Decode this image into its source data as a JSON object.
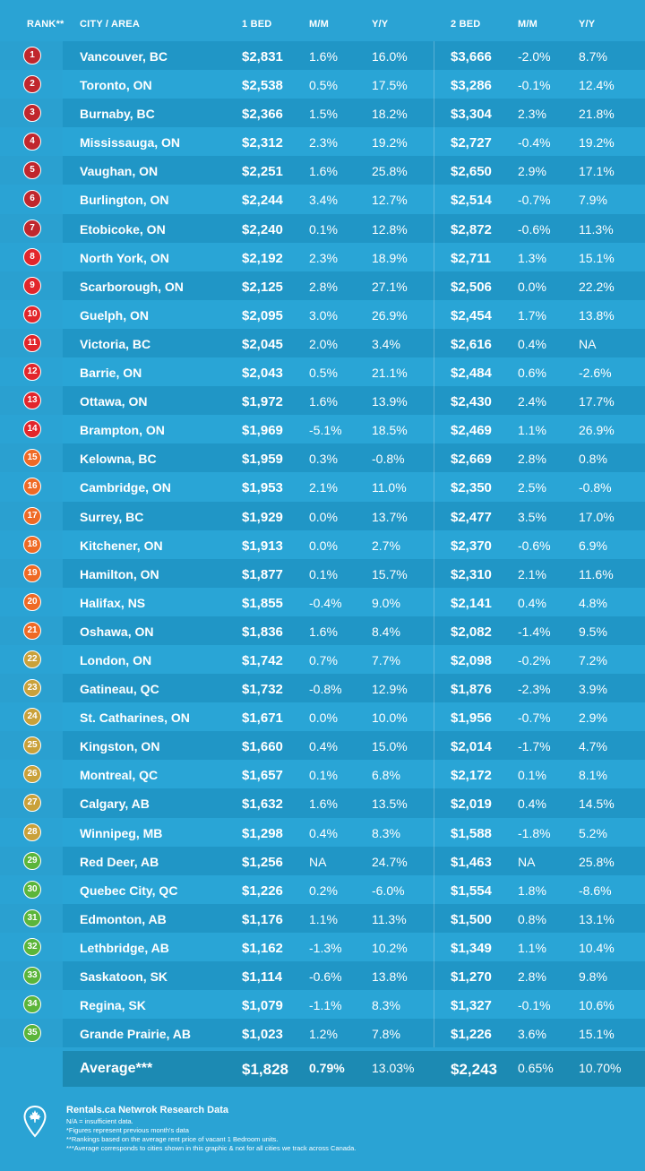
{
  "header": {
    "rank": "RANK**",
    "city": "CITY / AREA",
    "bed1": "1 BED",
    "mm1": "M/M",
    "yy1": "Y/Y",
    "bed2": "2 BED",
    "mm2": "M/M",
    "yy2": "Y/Y"
  },
  "chart_data": {
    "type": "table",
    "columns": [
      "RANK**",
      "CITY / AREA",
      "1 BED",
      "M/M",
      "Y/Y",
      "2 BED",
      "M/M",
      "Y/Y"
    ],
    "rows": [
      {
        "rank": "1",
        "city": "Vancouver, BC",
        "bed1": "$2,831",
        "mm1": "1.6%",
        "yy1": "16.0%",
        "bed2": "$3,666",
        "mm2": "-2.0%",
        "yy2": "8.7%",
        "color": "#c0272d"
      },
      {
        "rank": "2",
        "city": "Toronto, ON",
        "bed1": "$2,538",
        "mm1": "0.5%",
        "yy1": "17.5%",
        "bed2": "$3,286",
        "mm2": "-0.1%",
        "yy2": "12.4%",
        "color": "#c0272d"
      },
      {
        "rank": "3",
        "city": "Burnaby, BC",
        "bed1": "$2,366",
        "mm1": "1.5%",
        "yy1": "18.2%",
        "bed2": "$3,304",
        "mm2": "2.3%",
        "yy2": "21.8%",
        "color": "#c0272d"
      },
      {
        "rank": "4",
        "city": "Mississauga, ON",
        "bed1": "$2,312",
        "mm1": "2.3%",
        "yy1": "19.2%",
        "bed2": "$2,727",
        "mm2": "-0.4%",
        "yy2": "19.2%",
        "color": "#c0272d"
      },
      {
        "rank": "5",
        "city": "Vaughan, ON",
        "bed1": "$2,251",
        "mm1": "1.6%",
        "yy1": "25.8%",
        "bed2": "$2,650",
        "mm2": "2.9%",
        "yy2": "17.1%",
        "color": "#c0272d"
      },
      {
        "rank": "6",
        "city": "Burlington, ON",
        "bed1": "$2,244",
        "mm1": "3.4%",
        "yy1": "12.7%",
        "bed2": "$2,514",
        "mm2": "-0.7%",
        "yy2": "7.9%",
        "color": "#c0272d"
      },
      {
        "rank": "7",
        "city": "Etobicoke, ON",
        "bed1": "$2,240",
        "mm1": "0.1%",
        "yy1": "12.8%",
        "bed2": "$2,872",
        "mm2": "-0.6%",
        "yy2": "11.3%",
        "color": "#c0272d"
      },
      {
        "rank": "8",
        "city": "North York, ON",
        "bed1": "$2,192",
        "mm1": "2.3%",
        "yy1": "18.9%",
        "bed2": "$2,711",
        "mm2": "1.3%",
        "yy2": "15.1%",
        "color": "#e2262b"
      },
      {
        "rank": "9",
        "city": "Scarborough, ON",
        "bed1": "$2,125",
        "mm1": "2.8%",
        "yy1": "27.1%",
        "bed2": "$2,506",
        "mm2": "0.0%",
        "yy2": "22.2%",
        "color": "#e2262b"
      },
      {
        "rank": "10",
        "city": "Guelph, ON",
        "bed1": "$2,095",
        "mm1": "3.0%",
        "yy1": "26.9%",
        "bed2": "$2,454",
        "mm2": "1.7%",
        "yy2": "13.8%",
        "color": "#e2262b"
      },
      {
        "rank": "11",
        "city": "Victoria, BC",
        "bed1": "$2,045",
        "mm1": "2.0%",
        "yy1": "3.4%",
        "bed2": "$2,616",
        "mm2": "0.4%",
        "yy2": "NA",
        "color": "#e2262b"
      },
      {
        "rank": "12",
        "city": "Barrie, ON",
        "bed1": "$2,043",
        "mm1": "0.5%",
        "yy1": "21.1%",
        "bed2": "$2,484",
        "mm2": "0.6%",
        "yy2": "-2.6%",
        "color": "#e2262b"
      },
      {
        "rank": "13",
        "city": "Ottawa, ON",
        "bed1": "$1,972",
        "mm1": "1.6%",
        "yy1": "13.9%",
        "bed2": "$2,430",
        "mm2": "2.4%",
        "yy2": "17.7%",
        "color": "#e2262b"
      },
      {
        "rank": "14",
        "city": "Brampton, ON",
        "bed1": "$1,969",
        "mm1": "-5.1%",
        "yy1": "18.5%",
        "bed2": "$2,469",
        "mm2": "1.1%",
        "yy2": "26.9%",
        "color": "#e2262b"
      },
      {
        "rank": "15",
        "city": "Kelowna, BC",
        "bed1": "$1,959",
        "mm1": "0.3%",
        "yy1": "-0.8%",
        "bed2": "$2,669",
        "mm2": "2.8%",
        "yy2": "0.8%",
        "color": "#ef6a25"
      },
      {
        "rank": "16",
        "city": "Cambridge, ON",
        "bed1": "$1,953",
        "mm1": "2.1%",
        "yy1": "11.0%",
        "bed2": "$2,350",
        "mm2": "2.5%",
        "yy2": "-0.8%",
        "color": "#ef6a25"
      },
      {
        "rank": "17",
        "city": "Surrey, BC",
        "bed1": "$1,929",
        "mm1": "0.0%",
        "yy1": "13.7%",
        "bed2": "$2,477",
        "mm2": "3.5%",
        "yy2": "17.0%",
        "color": "#ef6a25"
      },
      {
        "rank": "18",
        "city": "Kitchener, ON",
        "bed1": "$1,913",
        "mm1": "0.0%",
        "yy1": "2.7%",
        "bed2": "$2,370",
        "mm2": "-0.6%",
        "yy2": "6.9%",
        "color": "#ef6a25"
      },
      {
        "rank": "19",
        "city": "Hamilton, ON",
        "bed1": "$1,877",
        "mm1": "0.1%",
        "yy1": "15.7%",
        "bed2": "$2,310",
        "mm2": "2.1%",
        "yy2": "11.6%",
        "color": "#ef6a25"
      },
      {
        "rank": "20",
        "city": "Halifax, NS",
        "bed1": "$1,855",
        "mm1": "-0.4%",
        "yy1": "9.0%",
        "bed2": "$2,141",
        "mm2": "0.4%",
        "yy2": "4.8%",
        "color": "#ef6a25"
      },
      {
        "rank": "21",
        "city": "Oshawa, ON",
        "bed1": "$1,836",
        "mm1": "1.6%",
        "yy1": "8.4%",
        "bed2": "$2,082",
        "mm2": "-1.4%",
        "yy2": "9.5%",
        "color": "#ef6a25"
      },
      {
        "rank": "22",
        "city": "London, ON",
        "bed1": "$1,742",
        "mm1": "0.7%",
        "yy1": "7.7%",
        "bed2": "$2,098",
        "mm2": "-0.2%",
        "yy2": "7.2%",
        "color": "#c9a13a"
      },
      {
        "rank": "23",
        "city": "Gatineau, QC",
        "bed1": "$1,732",
        "mm1": "-0.8%",
        "yy1": "12.9%",
        "bed2": "$1,876",
        "mm2": "-2.3%",
        "yy2": "3.9%",
        "color": "#c9a13a"
      },
      {
        "rank": "24",
        "city": "St. Catharines, ON",
        "bed1": "$1,671",
        "mm1": "0.0%",
        "yy1": "10.0%",
        "bed2": "$1,956",
        "mm2": "-0.7%",
        "yy2": "2.9%",
        "color": "#c9a13a"
      },
      {
        "rank": "25",
        "city": "Kingston, ON",
        "bed1": "$1,660",
        "mm1": "0.4%",
        "yy1": "15.0%",
        "bed2": "$2,014",
        "mm2": "-1.7%",
        "yy2": "4.7%",
        "color": "#c9a13a"
      },
      {
        "rank": "26",
        "city": "Montreal, QC",
        "bed1": "$1,657",
        "mm1": "0.1%",
        "yy1": "6.8%",
        "bed2": "$2,172",
        "mm2": "0.1%",
        "yy2": "8.1%",
        "color": "#c9a13a"
      },
      {
        "rank": "27",
        "city": "Calgary, AB",
        "bed1": "$1,632",
        "mm1": "1.6%",
        "yy1": "13.5%",
        "bed2": "$2,019",
        "mm2": "0.4%",
        "yy2": "14.5%",
        "color": "#c9a13a"
      },
      {
        "rank": "28",
        "city": "Winnipeg, MB",
        "bed1": "$1,298",
        "mm1": "0.4%",
        "yy1": "8.3%",
        "bed2": "$1,588",
        "mm2": "-1.8%",
        "yy2": "5.2%",
        "color": "#c9a13a"
      },
      {
        "rank": "29",
        "city": "Red Deer, AB",
        "bed1": "$1,256",
        "mm1": "NA",
        "yy1": "24.7%",
        "bed2": "$1,463",
        "mm2": "NA",
        "yy2": "25.8%",
        "color": "#5bb53a"
      },
      {
        "rank": "30",
        "city": "Quebec City, QC",
        "bed1": "$1,226",
        "mm1": "0.2%",
        "yy1": "-6.0%",
        "bed2": "$1,554",
        "mm2": "1.8%",
        "yy2": "-8.6%",
        "color": "#5bb53a"
      },
      {
        "rank": "31",
        "city": "Edmonton, AB",
        "bed1": "$1,176",
        "mm1": "1.1%",
        "yy1": "11.3%",
        "bed2": "$1,500",
        "mm2": "0.8%",
        "yy2": "13.1%",
        "color": "#5bb53a"
      },
      {
        "rank": "32",
        "city": "Lethbridge, AB",
        "bed1": "$1,162",
        "mm1": "-1.3%",
        "yy1": "10.2%",
        "bed2": "$1,349",
        "mm2": "1.1%",
        "yy2": "10.4%",
        "color": "#5bb53a"
      },
      {
        "rank": "33",
        "city": "Saskatoon, SK",
        "bed1": "$1,114",
        "mm1": "-0.6%",
        "yy1": "13.8%",
        "bed2": "$1,270",
        "mm2": "2.8%",
        "yy2": "9.8%",
        "color": "#5bb53a"
      },
      {
        "rank": "34",
        "city": "Regina, SK",
        "bed1": "$1,079",
        "mm1": "-1.1%",
        "yy1": "8.3%",
        "bed2": "$1,327",
        "mm2": "-0.1%",
        "yy2": "10.6%",
        "color": "#5bb53a"
      },
      {
        "rank": "35",
        "city": "Grande Prairie, AB",
        "bed1": "$1,023",
        "mm1": "1.2%",
        "yy1": "7.8%",
        "bed2": "$1,226",
        "mm2": "3.6%",
        "yy2": "15.1%",
        "color": "#5bb53a"
      }
    ],
    "average": {
      "label": "Average***",
      "bed1": "$1,828",
      "mm1": "0.79%",
      "yy1": "13.03%",
      "bed2": "$2,243",
      "mm2": "0.65%",
      "yy2": "10.70%"
    }
  },
  "footer": {
    "icon": "maple-leaf-pin-icon",
    "title": "Rentals.ca Netwrok Research Data",
    "notes": [
      "N/A = insufficient data.",
      "*Figures represent previous month's data",
      "**Rankings based on the average rent price of vacant 1 Bedroom units.",
      "***Average corresponds to cities shown in this graphic & not for all cities we track across Canada."
    ]
  }
}
